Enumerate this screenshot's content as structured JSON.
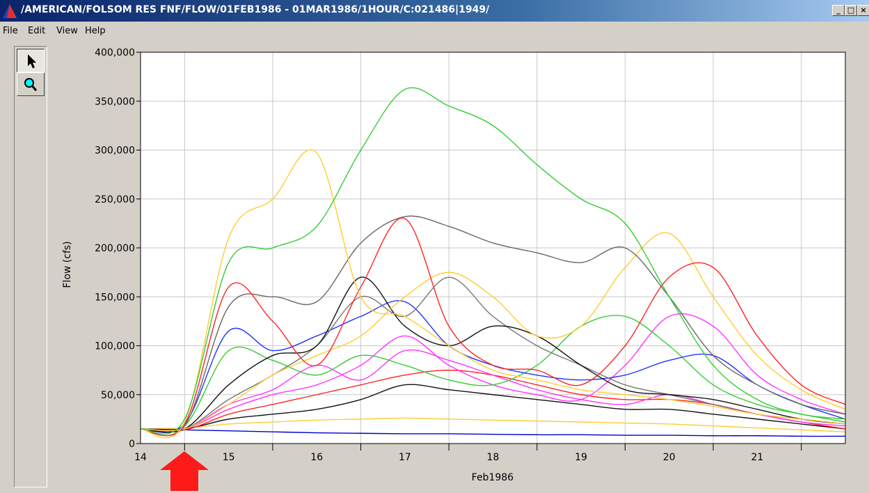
{
  "window": {
    "title": "/AMERICAN/FOLSOM RES FNF/FLOW/01FEB1986 - 01MAR1986/1HOUR/C:021486|1949/"
  },
  "menu": [
    "File",
    "Edit",
    "View",
    "Help"
  ],
  "chart_data": {
    "type": "line",
    "ylabel": "Flow (cfs)",
    "xlabel": "Feb1986",
    "x": [
      14.5,
      15,
      15.5,
      16,
      16.5,
      17,
      17.5,
      18,
      18.5,
      19,
      19.5,
      20,
      20.5,
      21,
      21.5,
      22,
      22.5
    ],
    "xlim": [
      14.5,
      22.5
    ],
    "xticks": [
      {
        "value": 14.5,
        "label": "14"
      },
      {
        "value": 15.5,
        "label": "15"
      },
      {
        "value": 16.5,
        "label": "16"
      },
      {
        "value": 17.5,
        "label": "17"
      },
      {
        "value": 18.5,
        "label": "18"
      },
      {
        "value": 19.5,
        "label": "19"
      },
      {
        "value": 20.5,
        "label": "20"
      },
      {
        "value": 21.5,
        "label": "21"
      }
    ],
    "xminorticks": [
      15,
      16,
      17,
      18,
      19,
      20,
      21,
      22
    ],
    "ylim": [
      0,
      400000
    ],
    "yticks": [
      {
        "value": 0,
        "label": "0"
      },
      {
        "value": 50000,
        "label": "50,000"
      },
      {
        "value": 100000,
        "label": "100,000"
      },
      {
        "value": 150000,
        "label": "150,000"
      },
      {
        "value": 200000,
        "label": "200,000"
      },
      {
        "value": 250000,
        "label": "250,000"
      },
      {
        "value": 300000,
        "label": "300,000"
      },
      {
        "value": 350000,
        "label": "350,000"
      },
      {
        "value": 400000,
        "label": "400,000"
      }
    ],
    "grid": true,
    "series": [
      {
        "color": "#ffcc33",
        "values": [
          15000,
          16000,
          20000,
          22000,
          24000,
          25000,
          26000,
          25000,
          24000,
          23000,
          22000,
          21000,
          20000,
          18000,
          16000,
          14000,
          12000
        ]
      },
      {
        "color": "#0000cc",
        "values": [
          15000,
          14000,
          13000,
          12000,
          11000,
          10500,
          10000,
          10000,
          9500,
          9000,
          9000,
          8500,
          8500,
          8000,
          8000,
          7500,
          7500
        ]
      },
      {
        "color": "#111111",
        "values": [
          15000,
          15000,
          25000,
          30000,
          35000,
          45000,
          60000,
          55000,
          50000,
          45000,
          40000,
          35000,
          35000,
          30000,
          25000,
          20000,
          15000
        ]
      },
      {
        "color": "#ff2222",
        "values": [
          15000,
          14000,
          30000,
          40000,
          50000,
          60000,
          70000,
          75000,
          70000,
          60000,
          50000,
          45000,
          45000,
          40000,
          30000,
          22000,
          15000
        ]
      },
      {
        "color": "#ff33ff",
        "values": [
          15000,
          15000,
          40000,
          55000,
          80000,
          65000,
          95000,
          85000,
          70000,
          55000,
          45000,
          40000,
          50000,
          40000,
          30000,
          22000,
          18000
        ]
      },
      {
        "color": "#ff33ff",
        "values": [
          15000,
          15000,
          35000,
          50000,
          60000,
          80000,
          110000,
          80000,
          60000,
          50000,
          45000,
          80000,
          130000,
          120000,
          70000,
          45000,
          30000
        ]
      },
      {
        "color": "#33cc33",
        "values": [
          15000,
          18000,
          95000,
          85000,
          70000,
          90000,
          80000,
          65000,
          60000,
          80000,
          120000,
          130000,
          100000,
          60000,
          40000,
          30000,
          22000
        ]
      },
      {
        "color": "#2233ff",
        "values": [
          15000,
          20000,
          115000,
          95000,
          110000,
          130000,
          145000,
          100000,
          80000,
          70000,
          65000,
          70000,
          85000,
          90000,
          60000,
          40000,
          25000
        ]
      },
      {
        "color": "#777777",
        "values": [
          15000,
          15000,
          45000,
          70000,
          100000,
          150000,
          130000,
          170000,
          130000,
          100000,
          80000,
          60000,
          50000,
          40000,
          30000,
          25000,
          20000
        ]
      },
      {
        "color": "#111111",
        "values": [
          15000,
          15000,
          60000,
          90000,
          100000,
          170000,
          120000,
          100000,
          120000,
          110000,
          80000,
          55000,
          50000,
          45000,
          35000,
          25000,
          20000
        ]
      },
      {
        "color": "#ffcc33",
        "values": [
          15000,
          15000,
          40000,
          70000,
          90000,
          110000,
          150000,
          175000,
          150000,
          110000,
          120000,
          180000,
          215000,
          150000,
          90000,
          55000,
          35000
        ]
      },
      {
        "color": "#666666",
        "values": [
          15000,
          18000,
          140000,
          150000,
          145000,
          205000,
          232000,
          222000,
          205000,
          195000,
          185000,
          200000,
          150000,
          90000,
          60000,
          40000,
          30000
        ]
      },
      {
        "color": "#ff2222",
        "values": [
          15000,
          20000,
          160000,
          125000,
          80000,
          160000,
          230000,
          120000,
          80000,
          75000,
          60000,
          100000,
          170000,
          180000,
          110000,
          60000,
          40000
        ]
      },
      {
        "color": "#ffcc33",
        "values": [
          15000,
          22000,
          210000,
          250000,
          297000,
          150000,
          130000,
          100000,
          75000,
          65000,
          55000,
          50000,
          45000,
          38000,
          30000,
          25000,
          20000
        ]
      },
      {
        "color": "#33cc33",
        "values": [
          15000,
          25000,
          185000,
          200000,
          222000,
          300000,
          362000,
          345000,
          325000,
          285000,
          250000,
          225000,
          150000,
          80000,
          45000,
          30000,
          25000
        ]
      }
    ]
  }
}
